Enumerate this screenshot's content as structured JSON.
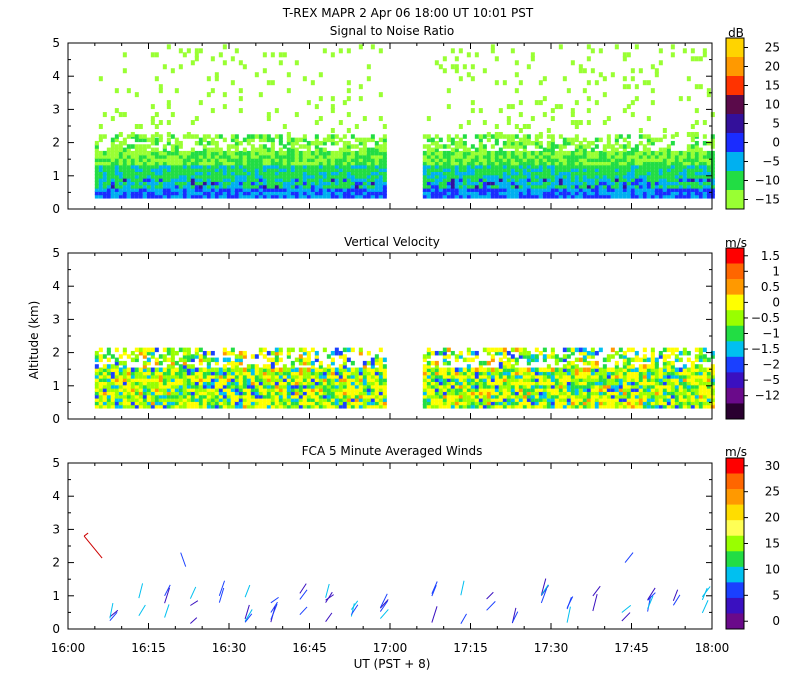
{
  "figure_title": "T-REX  MAPR  2 Apr 06  18:00 UT  10:01  PST",
  "shared_y_label": "Altitude (km)",
  "x_axis": {
    "label": "UT  (PST + 8)",
    "ticks": [
      "16:00",
      "16:15",
      "16:30",
      "16:45",
      "17:00",
      "17:15",
      "17:30",
      "17:45",
      "18:00"
    ],
    "range_hours": [
      16,
      18
    ]
  },
  "chart_data": [
    {
      "type": "heatmap",
      "title": "Signal to Noise Ratio",
      "ylabel": "Altitude (km)",
      "ylim": [
        0,
        5
      ],
      "yticks": [
        "0",
        "1",
        "2",
        "3",
        "4",
        "5"
      ],
      "colorbar_unit": "dB",
      "colorbar_labels": [
        "25",
        "20",
        "15",
        "10",
        "5",
        "0",
        "−5",
        "−10",
        "−15"
      ],
      "colorbar_colors": [
        "#ffd400",
        "#ff9900",
        "#ff3300",
        "#5a0a4a",
        "#33109a",
        "#1a2cff",
        "#00b0f0",
        "#22dd44",
        "#99ff33"
      ],
      "data_gap_ut": [
        "16:59",
        "17:06"
      ]
    },
    {
      "type": "heatmap",
      "title": "Vertical Velocity",
      "ylabel": "Altitude (km)",
      "ylim": [
        0,
        5
      ],
      "yticks": [
        "0",
        "1",
        "2",
        "3",
        "4",
        "5"
      ],
      "colorbar_unit": "m/s",
      "colorbar_labels": [
        "1.5",
        "1",
        "0.5",
        "0",
        "−0.5",
        "−1",
        "−1.5",
        "−2",
        "−5",
        "−12"
      ],
      "colorbar_colors": [
        "#ff0000",
        "#ff6600",
        "#ff9900",
        "#ffff00",
        "#99ff00",
        "#22dd44",
        "#00c0f0",
        "#1a40ff",
        "#3a10c0",
        "#6a0a8a",
        "#2a0030"
      ],
      "data_gap_ut": [
        "16:59",
        "17:06"
      ]
    },
    {
      "type": "scatter",
      "title": "FCA 5 Minute Averaged Winds",
      "ylabel": "Altitude (km)",
      "ylim": [
        0,
        5
      ],
      "yticks": [
        "0",
        "1",
        "2",
        "3",
        "4",
        "5"
      ],
      "colorbar_unit": "m/s",
      "colorbar_labels": [
        "30",
        "25",
        "20",
        "15",
        "10",
        "5",
        "0"
      ],
      "colorbar_colors": [
        "#ff0000",
        "#ff6600",
        "#ff9900",
        "#ffdd00",
        "#ffff55",
        "#99ff00",
        "#22dd44",
        "#00c0f0",
        "#1a40ff",
        "#3a10c0",
        "#6a0a8a"
      ]
    }
  ]
}
